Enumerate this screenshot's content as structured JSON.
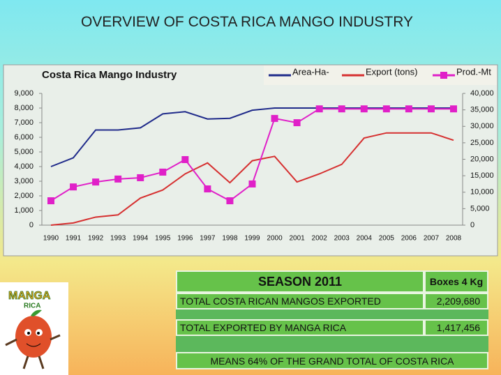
{
  "slide_title": "OVERVIEW OF COSTA RICA MANGO INDUSTRY",
  "chart_data": {
    "type": "line",
    "title": "Costa Rica Mango Industry",
    "categories": [
      "1990",
      "1991",
      "1992",
      "1993",
      "1994",
      "1995",
      "1996",
      "1997",
      "1998",
      "1999",
      "2000",
      "2001",
      "2002",
      "2003",
      "2004",
      "2005",
      "2006",
      "2007",
      "2008"
    ],
    "series": [
      {
        "name": "Area-Ha-",
        "color": "#1f2a8a",
        "values": [
          4000,
          4600,
          6500,
          6500,
          6650,
          7600,
          7750,
          7250,
          7300,
          7850,
          8000,
          8000,
          8000,
          8000,
          8000,
          8000,
          8000,
          8000,
          8000
        ]
      },
      {
        "name": "Export (tons)",
        "color": "#d63030",
        "values": [
          0,
          150,
          550,
          700,
          1850,
          2400,
          3500,
          4250,
          2900,
          4400,
          4700,
          2950,
          3500,
          4150,
          5950,
          6300,
          6300,
          6300,
          5800
        ]
      },
      {
        "name": "Prod.-Mt",
        "color": "#e020c8",
        "axis": "y2",
        "marker": "square",
        "values": [
          7400,
          11600,
          13100,
          14000,
          14400,
          16100,
          19900,
          11000,
          7400,
          12500,
          32400,
          31100,
          35300,
          35300,
          35300,
          35300,
          35300,
          35300,
          35300
        ]
      }
    ],
    "ylim": [
      0,
      9000
    ],
    "yticks": [
      0,
      {
        "value": 1000,
        "label": "1,000"
      },
      {
        "value": 2000,
        "label": "2,000"
      },
      {
        "value": 3000,
        "label": "3,000"
      },
      {
        "value": 4000,
        "label": "4,000"
      },
      {
        "value": 5000,
        "label": "5,000"
      },
      {
        "value": 6000,
        "label": "6,000"
      },
      {
        "value": 7000,
        "label": "7,000"
      },
      {
        "value": 8000,
        "label": "8,000"
      },
      {
        "value": 9000,
        "label": "9,000"
      }
    ],
    "y2lim": [
      0,
      40000
    ],
    "y2ticks": [
      0,
      {
        "value": 5000,
        "label": "5,000"
      },
      {
        "value": 10000,
        "label": "10,000"
      },
      {
        "value": 15000,
        "label": "15,000"
      },
      {
        "value": 20000,
        "label": "20,000"
      },
      {
        "value": 25000,
        "label": "25,000"
      },
      {
        "value": 30000,
        "label": "30,000"
      },
      {
        "value": 35000,
        "label": "35,000"
      },
      {
        "value": 40000,
        "label": "40,000"
      }
    ],
    "legend": "top-right",
    "grid": false
  },
  "table": {
    "header": [
      "SEASON 2011",
      "Boxes 4 Kg"
    ],
    "rows": [
      [
        "TOTAL  COSTA RICAN MANGOS EXPORTED",
        "2,209,680"
      ],
      [
        "TOTAL EXPORTED BY MANGA RICA",
        "1,417,456"
      ]
    ],
    "footer": "MEANS 64% OF THE GRAND TOTAL OF COSTA RICA"
  },
  "logo": {
    "line1": "MANGA",
    "line2": "RICA"
  }
}
